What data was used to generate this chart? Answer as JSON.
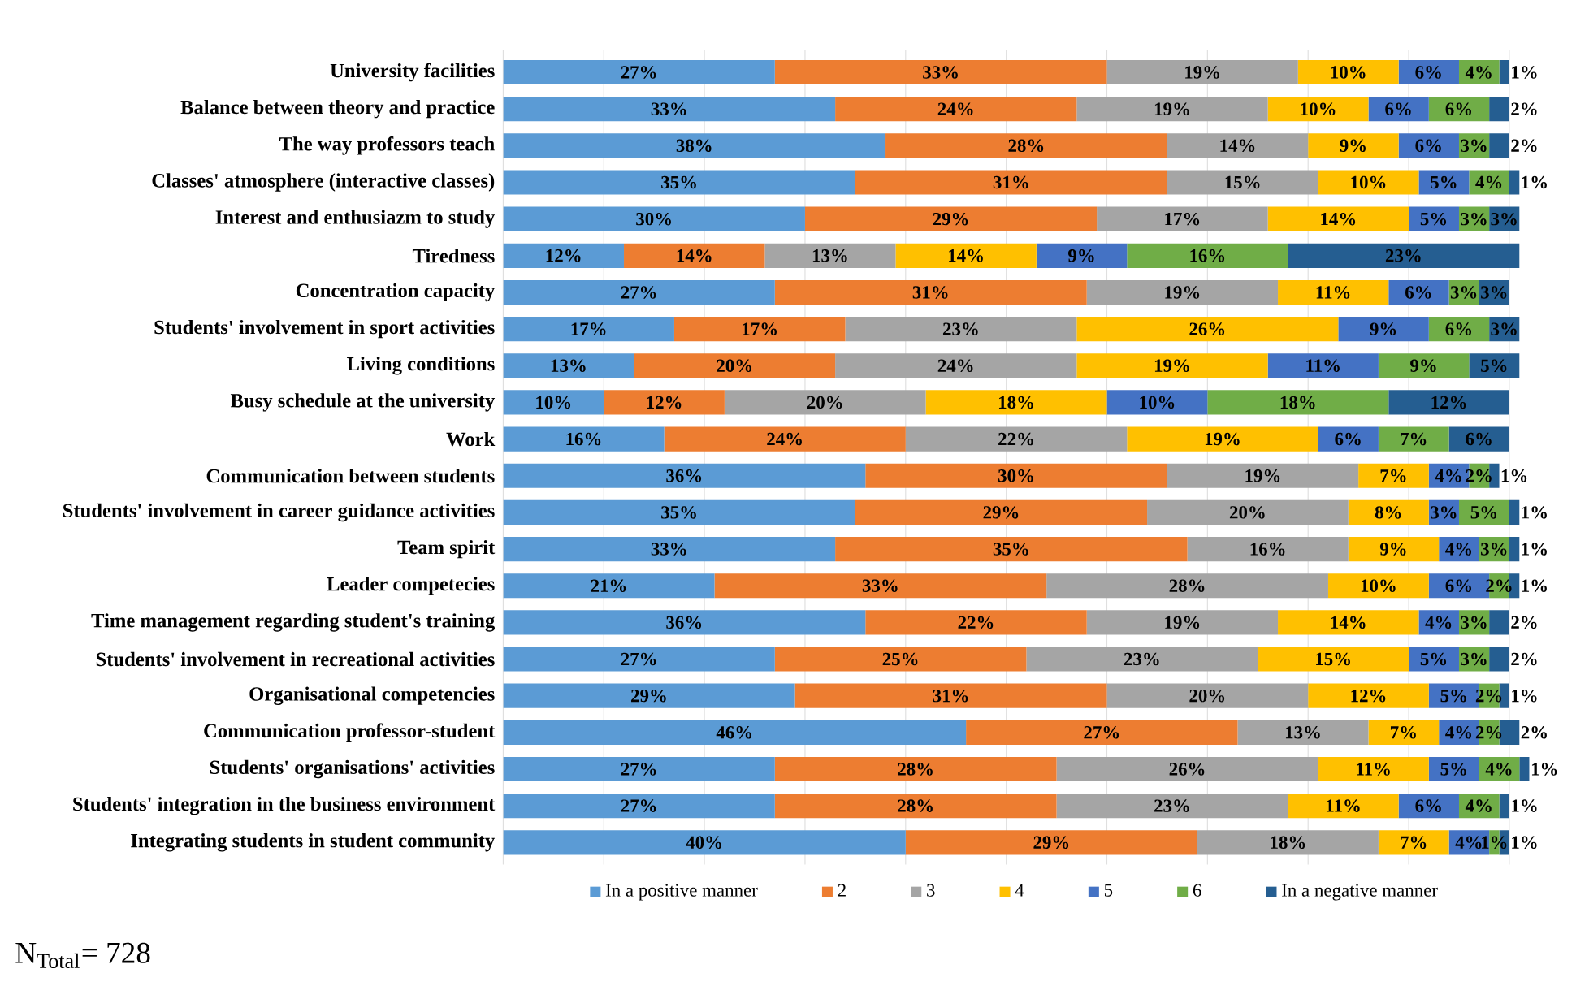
{
  "chart_data": {
    "type": "bar",
    "orientation": "horizontal",
    "stacked": true,
    "grid": "x",
    "legend": "bottom",
    "tick_labels": "y",
    "categories": [
      "University facilities",
      "Balance between theory and practice",
      "The way professors teach",
      "Classes' atmosphere (interactive classes)",
      "Interest and enthusiazm to study",
      "Tiredness",
      "Concentration capacity",
      "Students' involvement in sport activities",
      "Living conditions",
      "Busy schedule at the university",
      "Work",
      "Communication between students",
      "Students' involvement in career guidance activities",
      "Team spirit",
      "Leader competecies",
      "Time management regarding student's training",
      "Students' involvement in recreational activities",
      "Organisational competencies",
      "Communication professor-student",
      "Students' organisations' activities",
      "Students' integration in the business environment",
      "Integrating students in student community"
    ],
    "xlim": [
      0,
      102
    ],
    "xticks": [
      {
        "value": 0,
        "label": null
      },
      {
        "value": 10,
        "label": null
      },
      {
        "value": 20,
        "label": null
      },
      {
        "value": 30,
        "label": null
      },
      {
        "value": 40,
        "label": null
      },
      {
        "value": 50,
        "label": null
      },
      {
        "value": 60,
        "label": null
      },
      {
        "value": 70,
        "label": null
      },
      {
        "value": 80,
        "label": null
      },
      {
        "value": 90,
        "label": null
      },
      {
        "value": 100,
        "label": null
      }
    ],
    "series": [
      {
        "name": "In a positive manner",
        "color": "#5b9bd5",
        "values": [
          27,
          33,
          38,
          35,
          30,
          12,
          27,
          17,
          13,
          10,
          16,
          36,
          35,
          33,
          21,
          36,
          27,
          29,
          46,
          27,
          27,
          40
        ],
        "value_labels": [
          "27%",
          "33%",
          "38%",
          "35%",
          "30%",
          "12%",
          "27%",
          "17%",
          "13%",
          "10%",
          "16%",
          "36%",
          "35%",
          "33%",
          "21%",
          "36%",
          "27%",
          "29%",
          "46%",
          "27%",
          "27%",
          "40%"
        ]
      },
      {
        "name": "2",
        "color": "#ed7d31",
        "values": [
          33,
          24,
          28,
          31,
          29,
          14,
          31,
          17,
          20,
          12,
          24,
          30,
          29,
          35,
          33,
          22,
          25,
          31,
          27,
          28,
          28,
          29
        ],
        "value_labels": [
          "33%",
          "24%",
          "28%",
          "31%",
          "29%",
          "14%",
          "31%",
          "17%",
          "20%",
          "12%",
          "24%",
          "30%",
          "29%",
          "35%",
          "33%",
          "22%",
          "25%",
          "31%",
          "27%",
          "28%",
          "28%",
          "29%"
        ]
      },
      {
        "name": "3",
        "color": "#a5a5a5",
        "values": [
          19,
          19,
          14,
          15,
          17,
          13,
          19,
          23,
          24,
          20,
          22,
          19,
          20,
          16,
          28,
          19,
          23,
          20,
          13,
          26,
          23,
          18
        ],
        "value_labels": [
          "19%",
          "19%",
          "14%",
          "15%",
          "17%",
          "13%",
          "19%",
          "23%",
          "24%",
          "20%",
          "22%",
          "19%",
          "20%",
          "16%",
          "28%",
          "19%",
          "23%",
          "20%",
          "13%",
          "26%",
          "23%",
          "18%"
        ]
      },
      {
        "name": "4",
        "color": "#ffc000",
        "values": [
          10,
          10,
          9,
          10,
          14,
          14,
          11,
          26,
          19,
          18,
          19,
          7,
          8,
          9,
          10,
          14,
          15,
          12,
          7,
          11,
          11,
          7
        ],
        "value_labels": [
          "10%",
          "10%",
          "9%",
          "10%",
          "14%",
          "14%",
          "11%",
          "26%",
          "19%",
          "18%",
          "19%",
          "7%",
          "8%",
          "9%",
          "10%",
          "14%",
          "15%",
          "12%",
          "7%",
          "11%",
          "11%",
          "7%"
        ]
      },
      {
        "name": "5",
        "color": "#4472c4",
        "values": [
          6,
          6,
          6,
          5,
          5,
          9,
          6,
          9,
          11,
          10,
          6,
          4,
          3,
          4,
          6,
          4,
          5,
          5,
          4,
          5,
          6,
          4
        ],
        "value_labels": [
          "6%",
          "6%",
          "6%",
          "5%",
          "5%",
          "9%",
          "6%",
          "9%",
          "11%",
          "10%",
          "6%",
          "4%",
          "3%",
          "4%",
          "6%",
          "4%",
          "5%",
          "5%",
          "4%",
          "5%",
          "6%",
          "4%"
        ]
      },
      {
        "name": "6",
        "color": "#70ad47",
        "values": [
          4,
          6,
          3,
          4,
          3,
          16,
          3,
          6,
          9,
          18,
          7,
          2,
          5,
          3,
          2,
          3,
          3,
          2,
          2,
          4,
          4,
          1
        ],
        "value_labels": [
          "4%",
          "6%",
          "3%",
          "4%",
          "3%",
          "16%",
          "3%",
          "6%",
          "9%",
          "18%",
          "7%",
          "2%",
          "5%",
          "3%",
          "2%",
          "3%",
          "3%",
          "2%",
          "2%",
          "4%",
          "4%",
          "1%"
        ]
      },
      {
        "name": "In a negative manner",
        "color": "#255e91",
        "values": [
          1,
          2,
          2,
          1,
          3,
          23,
          3,
          3,
          5,
          12,
          6,
          1,
          1,
          1,
          1,
          2,
          2,
          1,
          2,
          1,
          1,
          1
        ],
        "value_labels": [
          "1%",
          "2%",
          "2%",
          "1%",
          "3%",
          "23%",
          "3%",
          "3%",
          "5%",
          "12%",
          "6%",
          "1%",
          "1%",
          "1%",
          "1%",
          "2%",
          "2%",
          "1%",
          "2%",
          "1%",
          "1%",
          "1%"
        ]
      }
    ],
    "annotations": [
      "N$_{Total}$= 728"
    ]
  }
}
